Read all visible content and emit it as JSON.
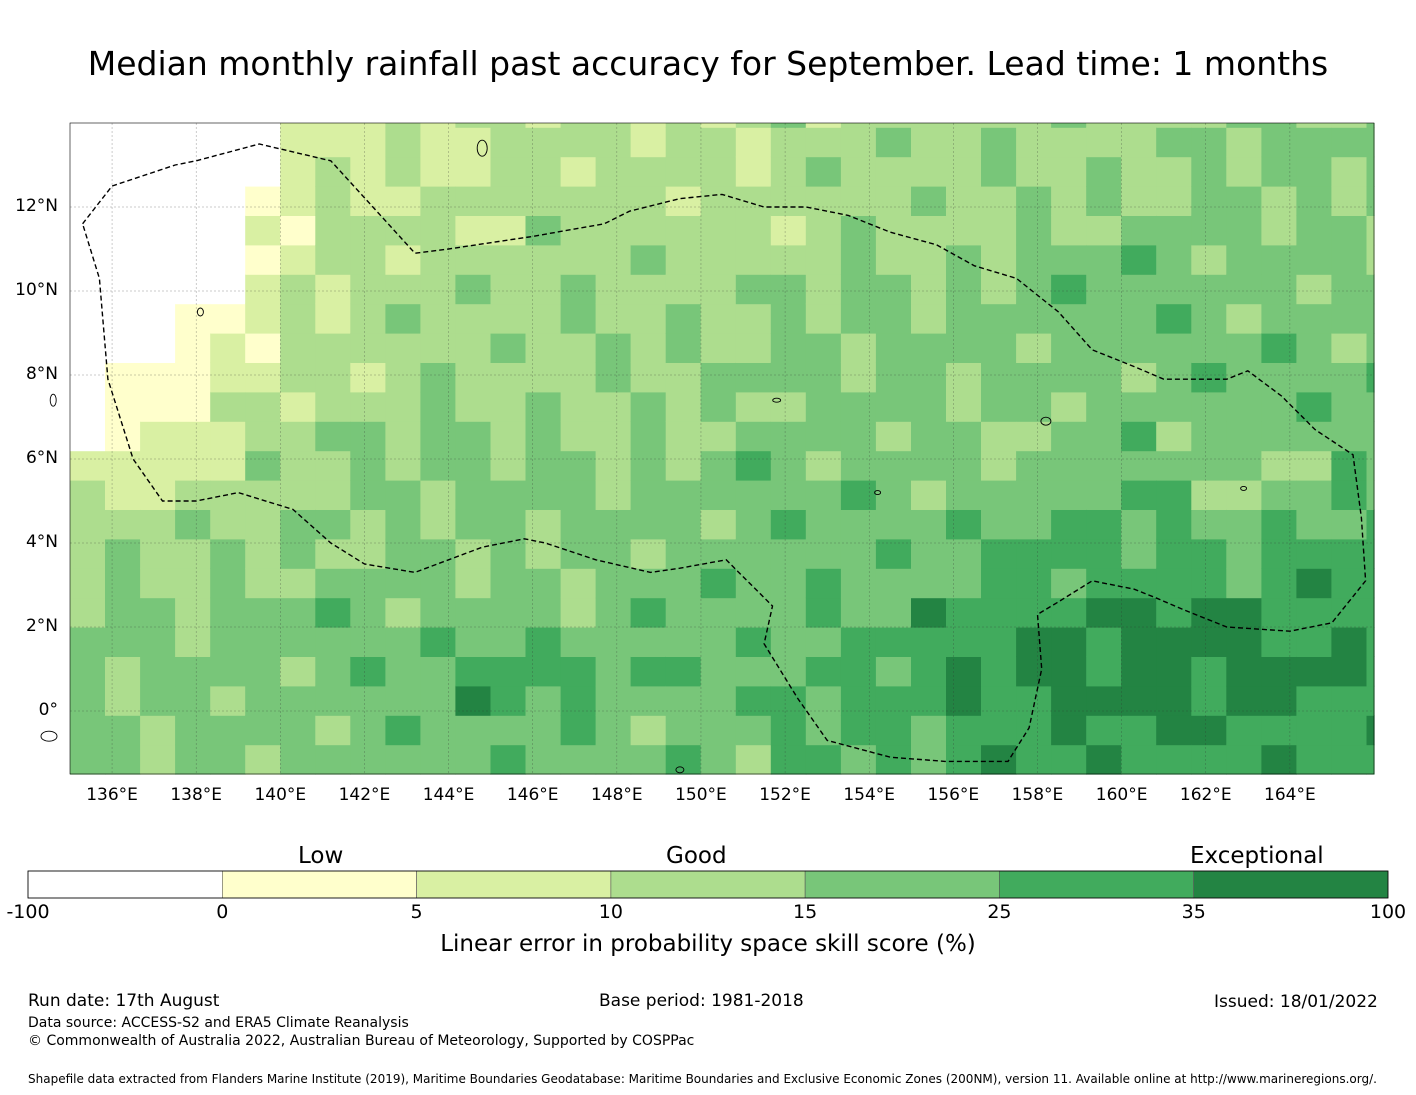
{
  "title": "Median monthly rainfall past accuracy for September. Lead time: 1 months",
  "map": {
    "lon_ticks": [
      "136°E",
      "138°E",
      "140°E",
      "142°E",
      "144°E",
      "146°E",
      "148°E",
      "150°E",
      "152°E",
      "154°E",
      "156°E",
      "158°E",
      "160°E",
      "162°E",
      "164°E"
    ],
    "lat_ticks": [
      "12°N",
      "10°N",
      "8°N",
      "6°N",
      "4°N",
      "2°N",
      "0°"
    ],
    "extent": {
      "lon_min": 135.0,
      "lon_max": 166.0,
      "lat_min": -1.5,
      "lat_max": 14.0
    },
    "eez_boundary_style": "dashed",
    "gridlines": true
  },
  "colorbar": {
    "band_labels": [
      "Low",
      "Good",
      "Exceptional"
    ],
    "bins": [
      {
        "from": "-100",
        "to": "0",
        "color": "#ffffff"
      },
      {
        "from": "0",
        "to": "5",
        "color": "#ffffcc"
      },
      {
        "from": "5",
        "to": "10",
        "color": "#d9f0a3"
      },
      {
        "from": "10",
        "to": "15",
        "color": "#addd8e"
      },
      {
        "from": "15",
        "to": "25",
        "color": "#78c679"
      },
      {
        "from": "25",
        "to": "35",
        "color": "#41ab5d"
      },
      {
        "from": "35",
        "to": "100",
        "color": "#238443"
      }
    ],
    "ticks": [
      "-100",
      "0",
      "5",
      "10",
      "15",
      "25",
      "35",
      "100"
    ],
    "label": "Linear error in probability space skill score (%)"
  },
  "footer": {
    "run_date": "Run date: 17th August",
    "base_period": "Base period: 1981-2018",
    "issued": "Issued: 18/01/2022",
    "data_source": "Data source: ACCESS-S2 and ERA5 Climate Reanalysis",
    "copyright": "© Commonwealth of Australia 2022, Australian Bureau of Meteorology, Supported by COSPPac",
    "shapefile": "Shapefile data extracted from Flanders Marine Institute (2019), Maritime Boundaries Geodatabase: Maritime Boundaries and Exclusive Economic Zones (200NM), version 11. Available online at http://www.marineregions.org/."
  }
}
